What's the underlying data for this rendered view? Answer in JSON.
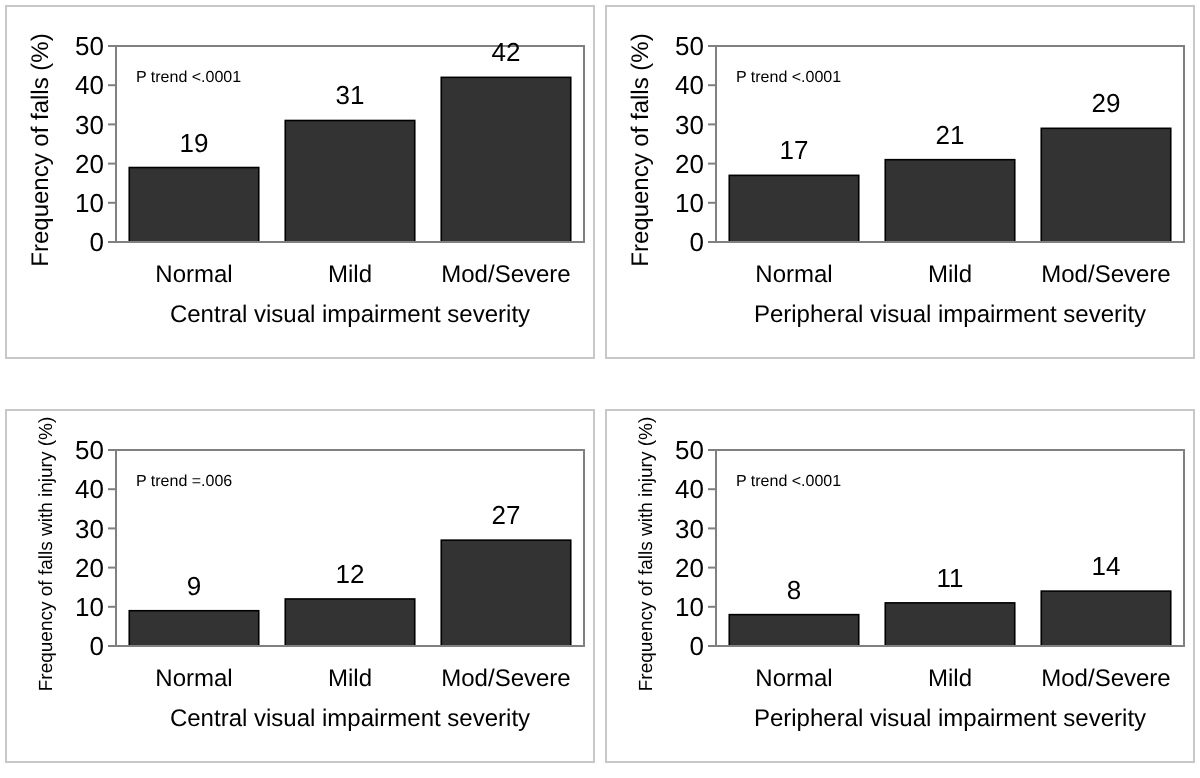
{
  "chart_data": [
    {
      "type": "bar",
      "categories": [
        "Normal",
        "Mild",
        "Mod/Severe"
      ],
      "values": [
        19,
        31,
        42
      ],
      "color": "#333333",
      "ylim": [
        0,
        50
      ],
      "yticks": [
        0,
        10,
        20,
        30,
        40,
        50
      ],
      "ylabel": "Frequency of falls (%)",
      "xlabel": "Central visual impairment severity",
      "annotations": [
        "P trend  <.0001"
      ],
      "data_labels": true
    },
    {
      "type": "bar",
      "categories": [
        "Normal",
        "Mild",
        "Mod/Severe"
      ],
      "values": [
        17,
        21,
        29
      ],
      "color": "#333333",
      "ylim": [
        0,
        50
      ],
      "yticks": [
        0,
        10,
        20,
        30,
        40,
        50
      ],
      "ylabel": "Frequency of falls (%)",
      "xlabel": "Peripheral visual impairment severity",
      "annotations": [
        "P trend  <.0001"
      ],
      "data_labels": true
    },
    {
      "type": "bar",
      "categories": [
        "Normal",
        "Mild",
        "Mod/Severe"
      ],
      "values": [
        9,
        12,
        27
      ],
      "color": "#333333",
      "ylim": [
        0,
        50
      ],
      "yticks": [
        0,
        10,
        20,
        30,
        40,
        50
      ],
      "ylabel": "Frequency of falls with injury (%)",
      "xlabel": "Central visual impairment severity",
      "annotations": [
        "P trend =.006"
      ],
      "data_labels": true
    },
    {
      "type": "bar",
      "categories": [
        "Normal",
        "Mild",
        "Mod/Severe"
      ],
      "values": [
        8,
        11,
        14
      ],
      "color": "#333333",
      "ylim": [
        0,
        50
      ],
      "yticks": [
        0,
        10,
        20,
        30,
        40,
        50
      ],
      "ylabel": "Frequency of falls with injury (%)",
      "xlabel": "Peripheral visual impairment severity",
      "annotations": [
        "P trend  <.0001"
      ],
      "data_labels": true
    }
  ]
}
